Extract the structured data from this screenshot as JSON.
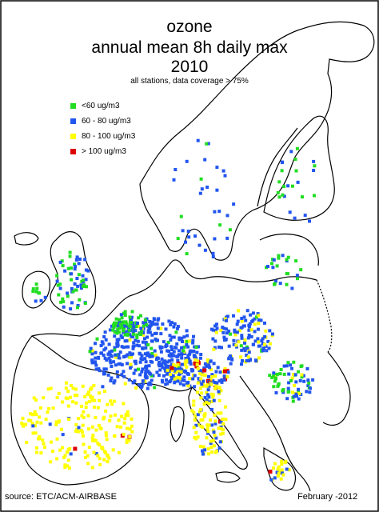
{
  "title": {
    "line1": "ozone",
    "line2": "annual mean 8h daily max",
    "line3": "2010",
    "subtitle": "all stations, data coverage > 75%"
  },
  "legend": [
    {
      "label": "<60 ug/m3",
      "color": "#22dd22"
    },
    {
      "label": "60 - 80 ug/m3",
      "color": "#2255ee"
    },
    {
      "label": "80 - 100 ug/m3",
      "color": "#ffff00"
    },
    {
      "label": "> 100 ug/m3",
      "color": "#dd0000"
    }
  ],
  "footer": {
    "source": "source: ETC/ACM-AIRBASE",
    "date": "February -2012"
  },
  "map": {
    "background": "#ffffff",
    "border_color": "#000000",
    "region": "Europe"
  }
}
